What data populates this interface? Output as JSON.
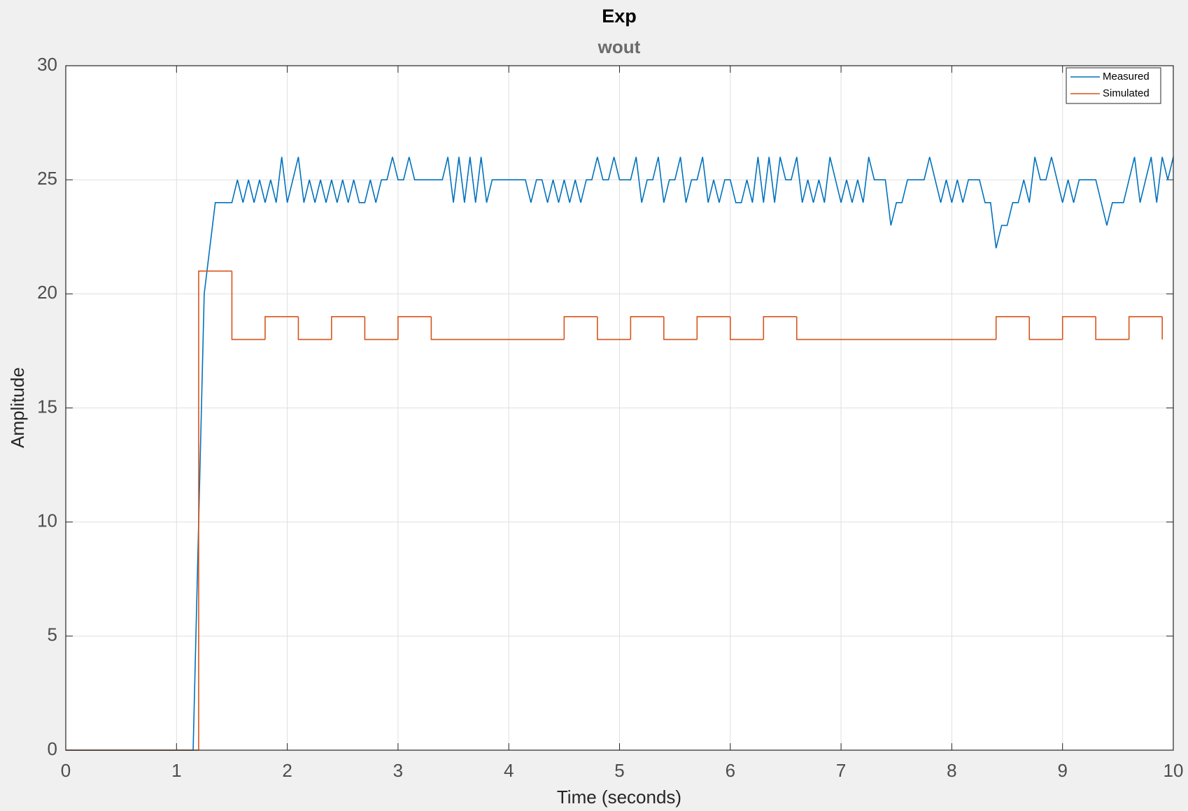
{
  "chart_data": {
    "type": "line",
    "title": "Exp",
    "subtitle": "wout",
    "xlabel": "Time (seconds)",
    "ylabel": "Amplitude",
    "xlim": [
      0,
      10
    ],
    "ylim": [
      0,
      30
    ],
    "xticks": [
      0,
      1,
      2,
      3,
      4,
      5,
      6,
      7,
      8,
      9,
      10
    ],
    "yticks": [
      0,
      5,
      10,
      15,
      20,
      25,
      30
    ],
    "grid": true,
    "legend": "northeast",
    "series": [
      {
        "name": "Measured",
        "color": "#0072bd",
        "style": "linear",
        "x": [
          0,
          0.05,
          0.1,
          0.15,
          0.2,
          0.25,
          0.3,
          0.35,
          0.4,
          0.45,
          0.5,
          0.55,
          0.6,
          0.65,
          0.7,
          0.75,
          0.8,
          0.85,
          0.9,
          0.95,
          1,
          1.05,
          1.1,
          1.15,
          1.2,
          1.25,
          1.3,
          1.35,
          1.4,
          1.45,
          1.5,
          1.55,
          1.6,
          1.65,
          1.7,
          1.75,
          1.8,
          1.85,
          1.9,
          1.95,
          2,
          2.05,
          2.1,
          2.15,
          2.2,
          2.25,
          2.3,
          2.35,
          2.4,
          2.45,
          2.5,
          2.55,
          2.6,
          2.65,
          2.7,
          2.75,
          2.8,
          2.85,
          2.9,
          2.95,
          3,
          3.05,
          3.1,
          3.15,
          3.2,
          3.25,
          3.3,
          3.35,
          3.4,
          3.45,
          3.5,
          3.55,
          3.6,
          3.65,
          3.7,
          3.75,
          3.8,
          3.85,
          3.9,
          3.95,
          4,
          4.05,
          4.1,
          4.15,
          4.2,
          4.25,
          4.3,
          4.35,
          4.4,
          4.45,
          4.5,
          4.55,
          4.6,
          4.65,
          4.7,
          4.75,
          4.8,
          4.85,
          4.9,
          4.95,
          5,
          5.05,
          5.1,
          5.15,
          5.2,
          5.25,
          5.3,
          5.35,
          5.4,
          5.45,
          5.5,
          5.55,
          5.6,
          5.65,
          5.7,
          5.75,
          5.8,
          5.85,
          5.9,
          5.95,
          6,
          6.05,
          6.1,
          6.15,
          6.2,
          6.25,
          6.3,
          6.35,
          6.4,
          6.45,
          6.5,
          6.55,
          6.6,
          6.65,
          6.7,
          6.75,
          6.8,
          6.85,
          6.9,
          6.95,
          7,
          7.05,
          7.1,
          7.15,
          7.2,
          7.25,
          7.3,
          7.35,
          7.4,
          7.45,
          7.5,
          7.55,
          7.6,
          7.65,
          7.7,
          7.75,
          7.8,
          7.85,
          7.9,
          7.95,
          8,
          8.05,
          8.1,
          8.15,
          8.2,
          8.25,
          8.3,
          8.35,
          8.4,
          8.45,
          8.5,
          8.55,
          8.6,
          8.65,
          8.7,
          8.75,
          8.8,
          8.85,
          8.9,
          8.95,
          9,
          9.05,
          9.1,
          9.15,
          9.2,
          9.25,
          9.3,
          9.35,
          9.4,
          9.45,
          9.5,
          9.55,
          9.6,
          9.65,
          9.7,
          9.75,
          9.8,
          9.85,
          9.9,
          9.95,
          10
        ],
        "values": [
          0,
          0,
          0,
          0,
          0,
          0,
          0,
          0,
          0,
          0,
          0,
          0,
          0,
          0,
          0,
          0,
          0,
          0,
          0,
          0,
          0,
          0,
          0,
          0,
          10,
          20,
          22,
          24,
          24,
          24,
          24,
          25,
          24,
          25,
          24,
          25,
          24,
          25,
          24,
          26,
          24,
          25,
          26,
          24,
          25,
          24,
          25,
          24,
          25,
          24,
          25,
          24,
          25,
          24,
          24,
          25,
          24,
          25,
          25,
          26,
          25,
          25,
          26,
          25,
          25,
          25,
          25,
          25,
          25,
          26,
          24,
          26,
          24,
          26,
          24,
          26,
          24,
          25,
          25,
          25,
          25,
          25,
          25,
          25,
          24,
          25,
          25,
          24,
          25,
          24,
          25,
          24,
          25,
          24,
          25,
          25,
          26,
          25,
          25,
          26,
          25,
          25,
          25,
          26,
          24,
          25,
          25,
          26,
          24,
          25,
          25,
          26,
          24,
          25,
          25,
          26,
          24,
          25,
          24,
          25,
          25,
          24,
          24,
          25,
          24,
          26,
          24,
          26,
          24,
          26,
          25,
          25,
          26,
          24,
          25,
          24,
          25,
          24,
          26,
          25,
          24,
          25,
          24,
          25,
          24,
          26,
          25,
          25,
          25,
          23,
          24,
          24,
          25,
          25,
          25,
          25,
          26,
          25,
          24,
          25,
          24,
          25,
          24,
          25,
          25,
          25,
          24,
          24,
          22,
          23,
          23,
          24,
          24,
          25,
          24,
          26,
          25,
          25,
          26,
          25,
          24,
          25,
          24,
          25,
          25,
          25,
          25,
          24,
          23,
          24,
          24,
          24,
          25,
          26,
          24,
          25,
          26,
          24,
          26,
          25,
          26
        ]
      },
      {
        "name": "Simulated",
        "color": "#d95319",
        "style": "step",
        "x": [
          0,
          1.2,
          1.5,
          1.8,
          2.1,
          2.4,
          2.7,
          3,
          3.3,
          4.5,
          4.8,
          5.1,
          5.4,
          5.7,
          6,
          6.3,
          6.6,
          8.4,
          8.7,
          9,
          9.3,
          9.6,
          9.9
        ],
        "values": [
          0,
          21,
          18,
          19,
          18,
          19,
          18,
          19,
          18,
          19,
          18,
          19,
          18,
          19,
          18,
          19,
          18,
          19,
          18,
          19,
          18,
          19,
          18
        ]
      }
    ]
  }
}
